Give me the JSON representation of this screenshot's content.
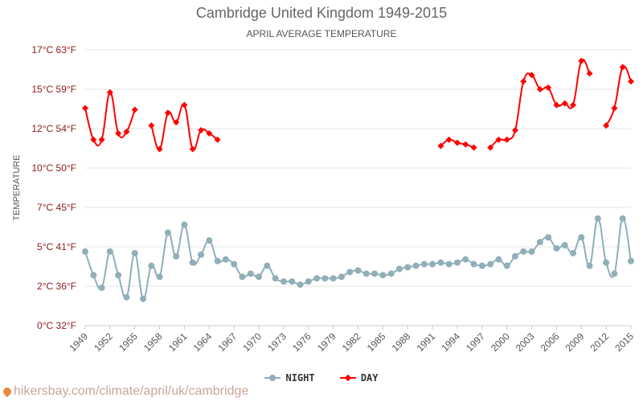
{
  "chart_data": {
    "type": "line",
    "title": "Cambridge United Kingdom 1949-2015",
    "subtitle": "APRIL AVERAGE TEMPERATURE",
    "ylabel": "TEMPERATURE",
    "xlabel": "",
    "ylim": [
      0,
      17.5
    ],
    "y_ticks": [
      {
        "value": 0,
        "label": "0°C 32°F"
      },
      {
        "value": 2.5,
        "label": "2°C 36°F"
      },
      {
        "value": 5,
        "label": "5°C 41°F"
      },
      {
        "value": 7.5,
        "label": "7°C 45°F"
      },
      {
        "value": 10,
        "label": "10°C 50°F"
      },
      {
        "value": 12.5,
        "label": "12°C 54°F"
      },
      {
        "value": 15,
        "label": "15°C 59°F"
      },
      {
        "value": 17.5,
        "label": "17°C 63°F"
      }
    ],
    "x_range": [
      1949,
      2015
    ],
    "x_ticks": [
      1949,
      1952,
      1955,
      1958,
      1961,
      1964,
      1967,
      1970,
      1973,
      1976,
      1979,
      1982,
      1985,
      1988,
      1991,
      1994,
      1997,
      2000,
      2003,
      2006,
      2009,
      2012,
      2015
    ],
    "grid": true,
    "legend_position": "bottom-center",
    "series": [
      {
        "name": "NIGHT",
        "color": "#90afb9",
        "marker": "circle",
        "x": [
          1949,
          1950,
          1951,
          1952,
          1953,
          1954,
          1955,
          1956,
          1957,
          1958,
          1959,
          1960,
          1961,
          1962,
          1963,
          1964,
          1965,
          1966,
          1967,
          1968,
          1969,
          1970,
          1971,
          1972,
          1973,
          1974,
          1975,
          1976,
          1977,
          1978,
          1979,
          1980,
          1981,
          1982,
          1983,
          1984,
          1985,
          1986,
          1987,
          1988,
          1989,
          1990,
          1991,
          1992,
          1993,
          1994,
          1995,
          1996,
          1997,
          1998,
          1999,
          2000,
          2001,
          2002,
          2003,
          2004,
          2005,
          2006,
          2007,
          2008,
          2009,
          2010,
          2011,
          2012,
          2013,
          2014,
          2015
        ],
        "values": [
          4.7,
          3.2,
          2.4,
          4.7,
          3.2,
          1.8,
          4.6,
          1.7,
          3.8,
          3.1,
          5.9,
          4.4,
          6.4,
          4.0,
          4.5,
          5.4,
          4.1,
          4.2,
          3.9,
          3.1,
          3.3,
          3.1,
          3.8,
          3.0,
          2.8,
          2.8,
          2.6,
          2.8,
          3.0,
          3.0,
          3.0,
          3.1,
          3.4,
          3.5,
          3.3,
          3.3,
          3.2,
          3.3,
          3.6,
          3.7,
          3.8,
          3.9,
          3.9,
          4.0,
          3.9,
          4.0,
          4.2,
          3.9,
          3.8,
          3.9,
          4.2,
          3.8,
          4.4,
          4.7,
          4.7,
          5.3,
          5.6,
          4.9,
          5.1,
          4.6,
          5.6,
          3.8,
          6.8,
          4.0,
          3.3,
          6.8,
          4.1
        ]
      },
      {
        "name": "DAY",
        "color": "#ff0000",
        "marker": "diamond",
        "x": [
          1949,
          1950,
          1951,
          1952,
          1953,
          1954,
          1955,
          1956,
          1957,
          1958,
          1959,
          1960,
          1961,
          1962,
          1963,
          1964,
          1965,
          1966,
          1967,
          1968,
          1969,
          1970,
          1971,
          1972,
          1973,
          1974,
          1975,
          1976,
          1977,
          1978,
          1979,
          1980,
          1981,
          1982,
          1983,
          1984,
          1985,
          1986,
          1987,
          1988,
          1989,
          1990,
          1991,
          1992,
          1993,
          1994,
          1995,
          1996,
          1997,
          1998,
          1999,
          2000,
          2001,
          2002,
          2003,
          2004,
          2005,
          2006,
          2007,
          2008,
          2009,
          2010,
          2011,
          2012,
          2013,
          2014,
          2015
        ],
        "values": [
          13.8,
          11.8,
          11.8,
          14.8,
          12.2,
          12.3,
          13.7,
          null,
          12.7,
          11.2,
          13.5,
          12.9,
          14.0,
          11.2,
          12.4,
          12.2,
          11.8,
          null,
          null,
          null,
          null,
          null,
          null,
          null,
          null,
          null,
          null,
          null,
          null,
          null,
          null,
          null,
          null,
          null,
          null,
          null,
          null,
          null,
          null,
          null,
          null,
          null,
          null,
          11.4,
          11.8,
          11.6,
          11.5,
          11.3,
          null,
          11.3,
          11.8,
          11.8,
          12.4,
          15.5,
          15.9,
          15.0,
          15.1,
          14.0,
          14.1,
          14.0,
          16.8,
          16.0,
          null,
          12.7,
          13.8,
          16.4,
          15.5
        ]
      }
    ]
  },
  "source": {
    "text": "hikersbay.com/climate/april/uk/cambridge",
    "icon": "map-pin-icon"
  }
}
